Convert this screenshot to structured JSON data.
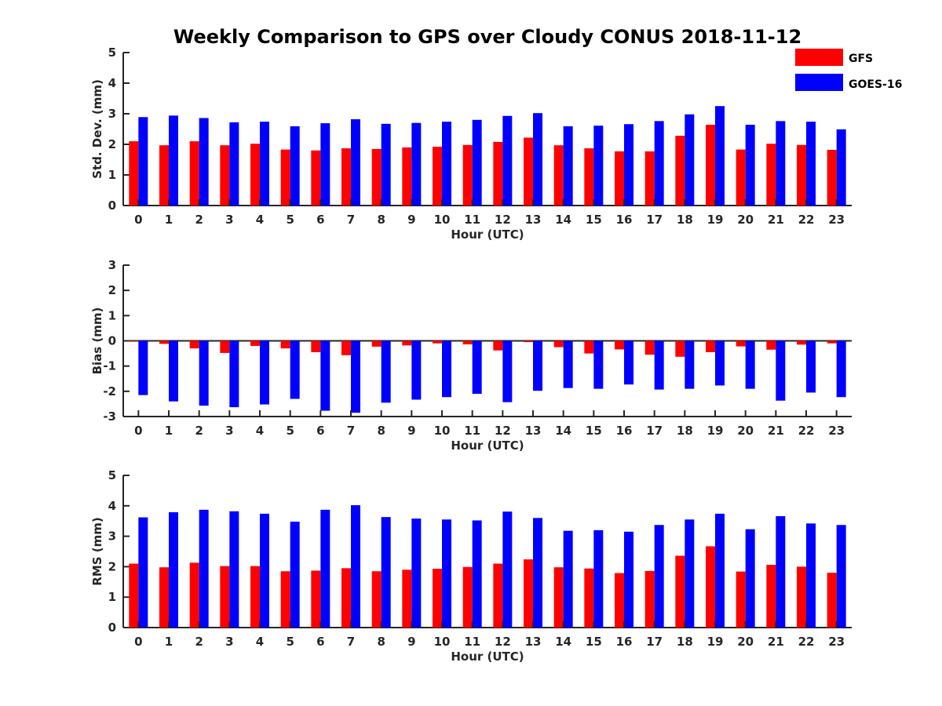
{
  "title": "Weekly Comparison to GPS over Cloudy CONUS 2018-11-12",
  "colors": {
    "GFS": "#ff0000",
    "GOES-16": "#0000ff"
  },
  "legend": {
    "placement": "top-right",
    "entries": [
      "GFS",
      "GOES-16"
    ]
  },
  "chart_data": [
    {
      "type": "bar",
      "ylabel": "Std. Dev. (mm)",
      "xlabel": "Hour (UTC)",
      "ylim": [
        0,
        5
      ],
      "yticks": [
        0,
        1,
        2,
        3,
        4,
        5
      ],
      "categories": [
        "0",
        "1",
        "2",
        "3",
        "4",
        "5",
        "6",
        "7",
        "8",
        "9",
        "10",
        "11",
        "12",
        "13",
        "14",
        "15",
        "16",
        "17",
        "18",
        "19",
        "20",
        "21",
        "22",
        "23"
      ],
      "series": [
        {
          "name": "GFS",
          "values": [
            2.1,
            1.97,
            2.1,
            1.97,
            2.02,
            1.83,
            1.8,
            1.87,
            1.85,
            1.9,
            1.92,
            1.98,
            2.08,
            2.22,
            1.97,
            1.87,
            1.77,
            1.77,
            2.28,
            2.64,
            1.83,
            2.02,
            1.98,
            1.82
          ]
        },
        {
          "name": "GOES-16",
          "values": [
            2.89,
            2.94,
            2.86,
            2.72,
            2.74,
            2.59,
            2.69,
            2.82,
            2.67,
            2.7,
            2.74,
            2.8,
            2.93,
            3.02,
            2.59,
            2.61,
            2.66,
            2.76,
            2.98,
            3.25,
            2.64,
            2.76,
            2.74,
            2.49
          ]
        }
      ]
    },
    {
      "type": "bar",
      "ylabel": "Bias (mm)",
      "xlabel": "Hour (UTC)",
      "ylim": [
        -3,
        3
      ],
      "yticks": [
        -3,
        -2,
        -1,
        0,
        1,
        2,
        3
      ],
      "zero_line": true,
      "categories": [
        "0",
        "1",
        "2",
        "3",
        "4",
        "5",
        "6",
        "7",
        "8",
        "9",
        "10",
        "11",
        "12",
        "13",
        "14",
        "15",
        "16",
        "17",
        "18",
        "19",
        "20",
        "21",
        "22",
        "23"
      ],
      "series": [
        {
          "name": "GFS",
          "values": [
            -0.02,
            -0.12,
            -0.3,
            -0.48,
            -0.2,
            -0.3,
            -0.45,
            -0.57,
            -0.23,
            -0.18,
            -0.1,
            -0.14,
            -0.38,
            -0.05,
            -0.25,
            -0.5,
            -0.34,
            -0.55,
            -0.63,
            -0.45,
            -0.22,
            -0.35,
            -0.15,
            -0.1
          ]
        },
        {
          "name": "GOES-16",
          "values": [
            -2.15,
            -2.4,
            -2.57,
            -2.63,
            -2.52,
            -2.3,
            -2.77,
            -2.85,
            -2.45,
            -2.33,
            -2.23,
            -2.1,
            -2.43,
            -1.98,
            -1.87,
            -1.9,
            -1.73,
            -1.93,
            -1.9,
            -1.77,
            -1.9,
            -2.37,
            -2.05,
            -2.23
          ]
        }
      ]
    },
    {
      "type": "bar",
      "ylabel": "RMS (mm)",
      "xlabel": "Hour (UTC)",
      "ylim": [
        0,
        5
      ],
      "yticks": [
        0,
        1,
        2,
        3,
        4,
        5
      ],
      "categories": [
        "0",
        "1",
        "2",
        "3",
        "4",
        "5",
        "6",
        "7",
        "8",
        "9",
        "10",
        "11",
        "12",
        "13",
        "14",
        "15",
        "16",
        "17",
        "18",
        "19",
        "20",
        "21",
        "22",
        "23"
      ],
      "series": [
        {
          "name": "GFS",
          "values": [
            2.1,
            1.98,
            2.13,
            2.02,
            2.02,
            1.85,
            1.87,
            1.95,
            1.85,
            1.9,
            1.93,
            1.99,
            2.1,
            2.24,
            1.98,
            1.94,
            1.79,
            1.86,
            2.36,
            2.67,
            1.84,
            2.06,
            2.0,
            1.8
          ]
        },
        {
          "name": "GOES-16",
          "values": [
            3.62,
            3.79,
            3.87,
            3.82,
            3.74,
            3.48,
            3.87,
            4.02,
            3.63,
            3.58,
            3.55,
            3.52,
            3.81,
            3.6,
            3.18,
            3.2,
            3.15,
            3.37,
            3.55,
            3.74,
            3.23,
            3.66,
            3.42,
            3.37
          ]
        }
      ]
    }
  ]
}
